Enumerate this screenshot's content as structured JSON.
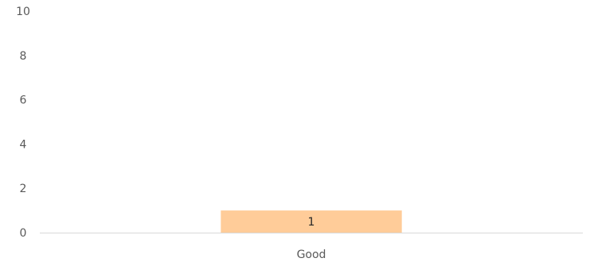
{
  "chart_data": {
    "type": "bar",
    "categories": [
      "Good"
    ],
    "values": [
      1
    ],
    "data_labels": [
      "1"
    ],
    "ylim": [
      0,
      10
    ],
    "yticks": [
      "0",
      "2",
      "4",
      "6",
      "8",
      "10"
    ],
    "grid": false,
    "legend": "none",
    "bar_color": "#FFCC99",
    "axis_color": "#D9D9D9",
    "tick_label_color": "#595959",
    "data_label_color": "#262626"
  }
}
